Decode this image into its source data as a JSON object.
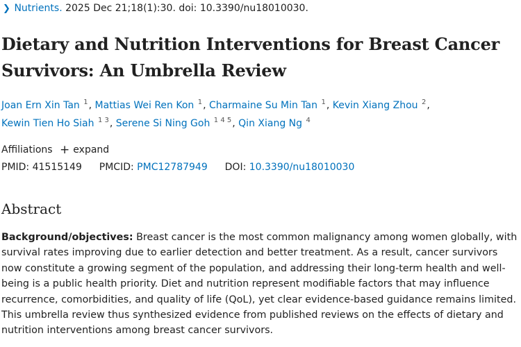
{
  "citation": {
    "journal": "Nutrients.",
    "details": "2025 Dec 21;18(1):30. doi: 10.3390/nu18010030."
  },
  "title": "Dietary and Nutrition Interventions for Breast Cancer Survivors: An Umbrella Review",
  "authors": [
    {
      "name": "Joan Ern Xin Tan",
      "affil": "1"
    },
    {
      "name": "Mattias Wei Ren Kon",
      "affil": "1"
    },
    {
      "name": "Charmaine Su Min Tan",
      "affil": "1"
    },
    {
      "name": "Kevin Xiang Zhou",
      "affil": "2"
    },
    {
      "name": "Kewin Tien Ho Siah",
      "affil": "1 3"
    },
    {
      "name": "Serene Si Ning Goh",
      "affil": "1 4 5"
    },
    {
      "name": "Qin Xiang Ng",
      "affil": "4"
    }
  ],
  "affiliations": {
    "label": "Affiliations",
    "expand": "expand"
  },
  "identifiers": {
    "pmid_label": "PMID:",
    "pmid": "41515149",
    "pmcid_label": "PMCID:",
    "pmcid": "PMC12787949",
    "doi_label": "DOI:",
    "doi": "10.3390/nu18010030"
  },
  "abstract": {
    "heading": "Abstract",
    "label": "Background/objectives:",
    "text": "Breast cancer is the most common malignancy among women globally, with survival rates improving due to earlier detection and better treatment. As a result, cancer survivors now constitute a growing segment of the population, and addressing their long-term health and well-being is a public health priority. Diet and nutrition represent modifiable factors that may influence recurrence, comorbidities, and quality of life (QoL), yet clear evidence-based guidance remains limited. This umbrella review thus synthesized evidence from published reviews on the effects of dietary and nutrition interventions among breast cancer survivors."
  }
}
